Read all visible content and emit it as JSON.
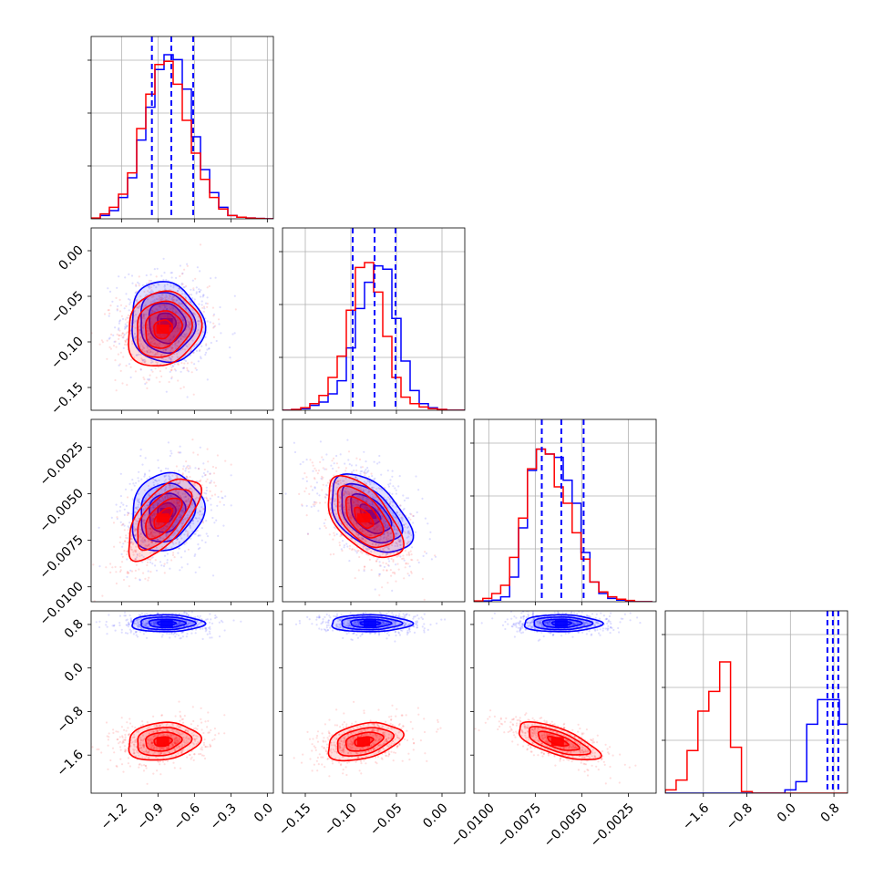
{
  "chart_data": {
    "type": "corner",
    "parameters": [
      "",
      "",
      "",
      ""
    ],
    "series": [
      {
        "name": "",
        "color": "#0000ff"
      },
      {
        "name": "",
        "color": "#ff0000"
      }
    ],
    "colors": {
      "blue": "#0000ff",
      "red": "#ff0000",
      "grid": "#b0b0b0"
    },
    "ranges": [
      [
        -1.45,
        0.05
      ],
      [
        -0.175,
        0.025
      ],
      [
        -0.0108,
        -0.001
      ],
      [
        -2.3,
        1.05
      ]
    ],
    "tick_labels": {
      "p0": [
        "−1.2",
        "−0.9",
        "−0.6",
        "−0.3",
        "0.0"
      ],
      "p1": [
        "−0.15",
        "−0.10",
        "−0.05",
        "0.00"
      ],
      "p2": [
        "−0.0100",
        "−0.0075",
        "−0.0050",
        "−0.0025"
      ],
      "p3": [
        "−1.6",
        "−0.8",
        "0.0",
        "0.8"
      ]
    },
    "tick_values": {
      "p0": [
        -1.2,
        -0.9,
        -0.6,
        -0.3,
        0.0
      ],
      "p1": [
        -0.15,
        -0.1,
        -0.05,
        0.0
      ],
      "p2": [
        -0.01,
        -0.0075,
        -0.005,
        -0.0025
      ],
      "p3": [
        -1.6,
        -0.8,
        0.0,
        0.8
      ]
    },
    "quantiles": {
      "p0": [
        -0.95,
        -0.79,
        -0.61
      ],
      "p1": [
        -0.098,
        -0.074,
        -0.051
      ],
      "p2": [
        -0.00715,
        -0.0061,
        -0.0049
      ],
      "p3": [
        0.68,
        0.78,
        0.88
      ]
    },
    "histograms": {
      "p0": {
        "edges": [
          -1.45,
          -1.375,
          -1.3,
          -1.225,
          -1.15,
          -1.075,
          -1.0,
          -0.925,
          -0.85,
          -0.775,
          -0.7,
          -0.625,
          -0.55,
          -0.475,
          -0.4,
          -0.325,
          -0.25,
          -0.175,
          -0.1,
          -0.025,
          0.05
        ],
        "blue": [
          0.002,
          0.02,
          0.05,
          0.13,
          0.25,
          0.48,
          0.68,
          0.91,
          1.0,
          0.97,
          0.79,
          0.5,
          0.3,
          0.16,
          0.07,
          0.02,
          0.01,
          0.005,
          0.002,
          0
        ],
        "red": [
          0.005,
          0.03,
          0.07,
          0.15,
          0.28,
          0.55,
          0.76,
          0.94,
          0.96,
          0.82,
          0.6,
          0.4,
          0.24,
          0.13,
          0.06,
          0.02,
          0.01,
          0.005,
          0.002,
          0
        ]
      },
      "p1": {
        "edges": [
          -0.175,
          -0.165,
          -0.155,
          -0.145,
          -0.135,
          -0.125,
          -0.115,
          -0.105,
          -0.095,
          -0.085,
          -0.075,
          -0.065,
          -0.055,
          -0.045,
          -0.035,
          -0.025,
          -0.015,
          -0.005,
          0.005,
          0.015,
          0.025
        ],
        "blue": [
          0,
          0.005,
          0.01,
          0.03,
          0.05,
          0.1,
          0.18,
          0.38,
          0.62,
          0.78,
          0.88,
          0.86,
          0.56,
          0.3,
          0.12,
          0.04,
          0.015,
          0.005,
          0,
          0
        ],
        "red": [
          0,
          0.005,
          0.015,
          0.04,
          0.09,
          0.2,
          0.33,
          0.61,
          0.87,
          0.9,
          0.72,
          0.45,
          0.2,
          0.08,
          0.04,
          0.02,
          0.01,
          0.005,
          0,
          0
        ]
      },
      "p2": {
        "edges": [
          -0.0108,
          -0.01032,
          -0.00984,
          -0.00936,
          -0.00888,
          -0.0084,
          -0.00792,
          -0.00744,
          -0.00696,
          -0.00648,
          -0.006,
          -0.00552,
          -0.00504,
          -0.00456,
          -0.00408,
          -0.0036,
          -0.00312,
          -0.00264,
          -0.00216,
          -0.00168,
          -0.0012
        ],
        "blue": [
          0,
          0.005,
          0.01,
          0.03,
          0.15,
          0.45,
          0.8,
          0.93,
          0.9,
          0.88,
          0.74,
          0.6,
          0.3,
          0.12,
          0.05,
          0.02,
          0.01,
          0.005,
          0,
          0
        ],
        "red": [
          0.005,
          0.02,
          0.05,
          0.1,
          0.27,
          0.51,
          0.81,
          0.93,
          0.9,
          0.7,
          0.6,
          0.42,
          0.26,
          0.12,
          0.06,
          0.03,
          0.015,
          0.008,
          0,
          0
        ]
      },
      "p3": {
        "edges": [
          -2.3,
          -2.1,
          -1.9,
          -1.7,
          -1.5,
          -1.3,
          -1.1,
          -0.9,
          -0.7,
          -0.5,
          -0.3,
          -0.1,
          0.1,
          0.3,
          0.5,
          0.7,
          0.9,
          1.05
        ],
        "blue": [
          0,
          0,
          0,
          0,
          0,
          0,
          0,
          0,
          0,
          0,
          0,
          0.02,
          0.07,
          0.42,
          0.57,
          0.57,
          0.42
        ],
        "red": [
          0.02,
          0.08,
          0.26,
          0.5,
          0.62,
          0.8,
          0.28,
          0.01,
          0,
          0,
          0,
          0,
          0,
          0,
          0,
          0,
          0
        ]
      }
    },
    "contours": {
      "p1_vs_p0": {
        "blue": {
          "mean": [
            -0.83,
            -0.079
          ],
          "cov": [
            [
              0.0225,
              -0.0003
            ],
            [
              -0.0003,
              0.00049
            ]
          ]
        },
        "red": {
          "mean": [
            -0.86,
            -0.086
          ],
          "cov": [
            [
              0.0225,
              0.0004
            ],
            [
              0.0004,
              0.00042
            ]
          ]
        }
      },
      "p2_vs_p0": {
        "blue": {
          "mean": [
            -0.83,
            -0.006
          ],
          "cov": [
            [
              0.022,
              2e-05
            ],
            [
              2e-05,
              1.1e-06
            ]
          ]
        },
        "red": {
          "mean": [
            -0.86,
            -0.0063
          ],
          "cov": [
            [
              0.022,
              0.000105
            ],
            [
              0.000105,
              1.2e-06
            ]
          ]
        }
      },
      "p2_vs_p1": {
        "blue": {
          "mean": [
            -0.079,
            -0.0061
          ],
          "cov": [
            [
              0.00049,
              -1.15e-05
            ],
            [
              -1.15e-05,
              1.1e-06
            ]
          ]
        },
        "red": {
          "mean": [
            -0.086,
            -0.0063
          ],
          "cov": [
            [
              0.00042,
              -1.3e-05
            ],
            [
              -1.3e-05,
              1.2e-06
            ]
          ]
        }
      },
      "p3_vs_p0": {
        "blue": {
          "mean": [
            -0.83,
            0.82
          ],
          "cov": [
            [
              0.0225,
              0
            ],
            [
              0,
              0.006
            ]
          ]
        },
        "red": {
          "mean": [
            -0.86,
            -1.35
          ],
          "cov": [
            [
              0.022,
              0.004
            ],
            [
              0.004,
              0.03
            ]
          ]
        }
      },
      "p3_vs_p1": {
        "blue": {
          "mean": [
            -0.079,
            0.82
          ],
          "cov": [
            [
              0.00049,
              0
            ],
            [
              0,
              0.006
            ]
          ]
        },
        "red": {
          "mean": [
            -0.086,
            -1.35
          ],
          "cov": [
            [
              0.00042,
              0.0013
            ],
            [
              0.0013,
              0.03
            ]
          ]
        }
      },
      "p3_vs_p2": {
        "blue": {
          "mean": [
            -0.0061,
            0.82
          ],
          "cov": [
            [
              1.1e-06,
              0
            ],
            [
              0,
              0.006
            ]
          ]
        },
        "red": {
          "mean": [
            -0.0063,
            -1.35
          ],
          "cov": [
            [
              1.2e-06,
              -0.00013
            ],
            [
              -0.00013,
              0.03
            ]
          ]
        }
      }
    },
    "contour_levels_sigma": [
      0.5,
      1.0,
      1.5,
      2.0
    ],
    "grid": true
  }
}
